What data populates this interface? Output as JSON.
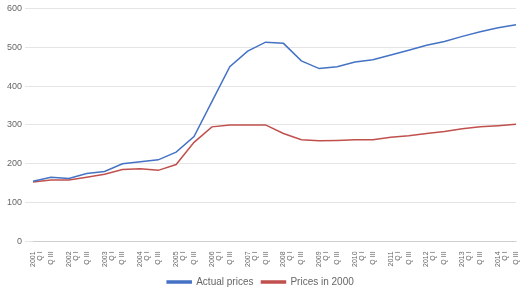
{
  "chart_data": {
    "type": "line",
    "categories": [
      "2001\nQ I",
      "Q III",
      "2002\nQ I",
      "Q III",
      "2003\nQ I",
      "Q III",
      "2004\nQ I",
      "Q III",
      "2005\nQ I",
      "Q III",
      "2006\nQ I",
      "Q III",
      "2007\nQ I",
      "Q III",
      "2008\nQ I",
      "Q III",
      "2009\nQ I",
      "Q III",
      "2010\nQ I",
      "Q III",
      "2011\nQ I",
      "Q III",
      "2012\nQ I",
      "Q III",
      "2013\nQ I",
      "Q III",
      "2014\nQ I",
      "Q III"
    ],
    "series": [
      {
        "name": "Actual prices",
        "color": "#4472C4",
        "values": [
          155,
          165,
          162,
          175,
          180,
          200,
          205,
          210,
          230,
          270,
          360,
          450,
          490,
          513,
          510,
          465,
          445,
          450,
          462,
          468,
          480,
          492,
          505,
          515,
          528,
          540,
          550,
          558
        ]
      },
      {
        "name": "Prices in 2000",
        "color": "#C0504D",
        "values": [
          153,
          158,
          158,
          165,
          173,
          185,
          187,
          183,
          198,
          255,
          295,
          300,
          300,
          300,
          278,
          262,
          259,
          260,
          262,
          262,
          268,
          272,
          278,
          283,
          290,
          295,
          298,
          302
        ]
      }
    ],
    "ylim": [
      0,
      600
    ],
    "yticks": [
      0,
      100,
      200,
      300,
      400,
      500,
      600
    ],
    "grid": true,
    "legend": "bottom"
  }
}
